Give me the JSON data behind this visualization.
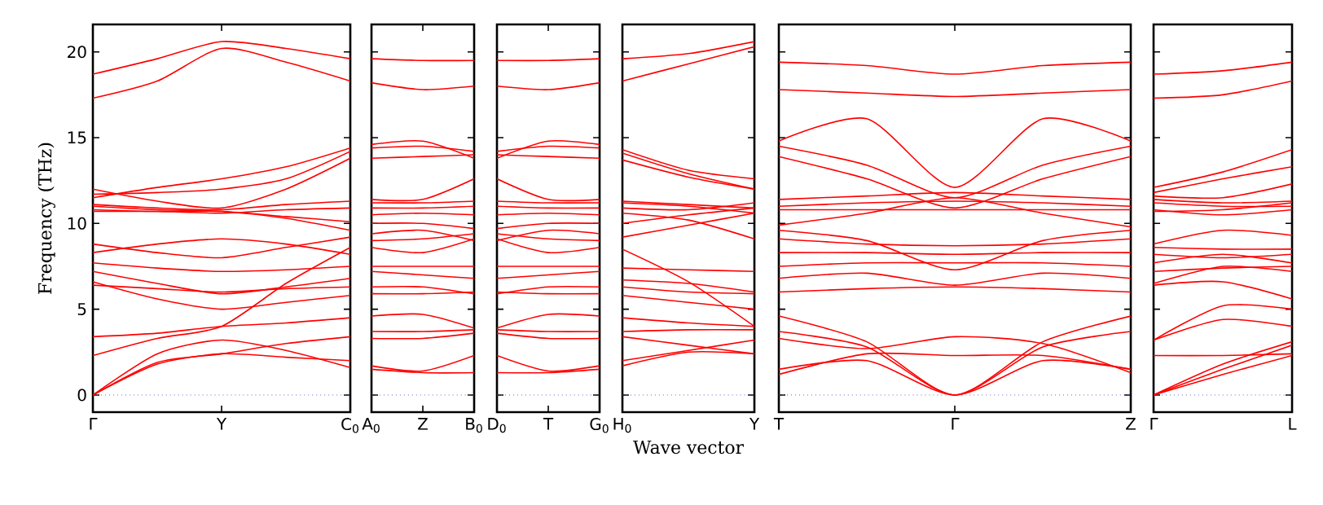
{
  "chart_data": [
    {
      "type": "line",
      "ylabel": "Frequency (THz)",
      "categories": [
        "Γ",
        null,
        "Y",
        null,
        "C$_{0}$"
      ],
      "ylim": [
        -1,
        21.6
      ],
      "yticks": [
        0,
        5,
        10,
        15,
        20
      ],
      "ref_lines": [
        {
          "axis": "y",
          "value": 0,
          "color": "#6666cc",
          "line_style": "dotted"
        }
      ],
      "line_style": "solid",
      "series": [
        {
          "color": "#ff0000",
          "values": [
            18.7,
            19.6,
            20.6,
            20.2,
            19.6
          ]
        },
        {
          "color": "#ff0000",
          "values": [
            17.3,
            18.3,
            20.2,
            19.4,
            18.3
          ]
        },
        {
          "color": "#ff0000",
          "values": [
            11.5,
            12.1,
            12.6,
            13.3,
            14.4
          ]
        },
        {
          "color": "#ff0000",
          "values": [
            11.7,
            11.8,
            12.0,
            12.6,
            14.2
          ]
        },
        {
          "color": "#ff0000",
          "values": [
            12.0,
            11.3,
            10.9,
            12.0,
            13.8
          ]
        },
        {
          "color": "#ff0000",
          "values": [
            11.1,
            10.9,
            10.8,
            11.1,
            11.3
          ]
        },
        {
          "color": "#ff0000",
          "values": [
            10.7,
            10.7,
            10.6,
            10.8,
            10.9
          ]
        },
        {
          "color": "#ff0000",
          "values": [
            11.0,
            10.8,
            10.7,
            10.3,
            9.6
          ]
        },
        {
          "color": "#ff0000",
          "values": [
            10.8,
            10.7,
            10.7,
            10.4,
            10.1
          ]
        },
        {
          "color": "#ff0000",
          "values": [
            8.3,
            8.8,
            9.1,
            8.8,
            8.2
          ]
        },
        {
          "color": "#ff0000",
          "values": [
            8.8,
            8.3,
            8.0,
            8.6,
            9.2
          ]
        },
        {
          "color": "#ff0000",
          "values": [
            7.7,
            7.4,
            7.2,
            7.3,
            7.5
          ]
        },
        {
          "color": "#ff0000",
          "values": [
            7.2,
            6.5,
            5.9,
            6.3,
            6.8
          ]
        },
        {
          "color": "#ff0000",
          "values": [
            6.6,
            5.6,
            5.0,
            5.4,
            5.8
          ]
        },
        {
          "color": "#ff0000",
          "values": [
            6.4,
            6.2,
            6.0,
            6.2,
            6.3
          ]
        },
        {
          "color": "#ff0000",
          "values": [
            3.4,
            3.6,
            4.0,
            4.2,
            4.5
          ]
        },
        {
          "color": "#ff0000",
          "values": [
            2.3,
            3.3,
            4.0,
            6.5,
            8.6
          ]
        },
        {
          "color": "#ff0000",
          "values": [
            0,
            2.4,
            3.2,
            2.6,
            1.6
          ]
        },
        {
          "color": "#ff0000",
          "values": [
            0,
            1.9,
            2.4,
            3.0,
            3.4
          ]
        },
        {
          "color": "#ff0000",
          "values": [
            0,
            1.8,
            2.4,
            2.2,
            2.0
          ]
        }
      ]
    },
    {
      "type": "line",
      "categories": [
        "A$_{0}$",
        "Z",
        "B$_{0}$"
      ],
      "ylim": [
        -1,
        21.6
      ],
      "yticks": [
        0,
        5,
        10,
        15,
        20
      ],
      "tick_labels": "x",
      "ref_lines": [
        {
          "axis": "y",
          "value": 0,
          "color": "#6666cc",
          "line_style": "dotted"
        }
      ],
      "line_style": "solid",
      "series": [
        {
          "color": "#ff0000",
          "values": [
            19.6,
            19.5,
            19.5
          ]
        },
        {
          "color": "#ff0000",
          "values": [
            18.2,
            17.8,
            18.0
          ]
        },
        {
          "color": "#ff0000",
          "values": [
            14.6,
            14.8,
            13.8
          ]
        },
        {
          "color": "#ff0000",
          "values": [
            14.4,
            14.5,
            14.2
          ]
        },
        {
          "color": "#ff0000",
          "values": [
            13.8,
            13.9,
            14.0
          ]
        },
        {
          "color": "#ff0000",
          "values": [
            11.4,
            11.4,
            12.6
          ]
        },
        {
          "color": "#ff0000",
          "values": [
            11.2,
            11.2,
            11.3
          ]
        },
        {
          "color": "#ff0000",
          "values": [
            10.9,
            10.9,
            11.0
          ]
        },
        {
          "color": "#ff0000",
          "values": [
            10.5,
            10.6,
            10.5
          ]
        },
        {
          "color": "#ff0000",
          "values": [
            10.0,
            10.0,
            9.7
          ]
        },
        {
          "color": "#ff0000",
          "values": [
            9.4,
            9.6,
            9.0
          ]
        },
        {
          "color": "#ff0000",
          "values": [
            9.0,
            9.1,
            9.4
          ]
        },
        {
          "color": "#ff0000",
          "values": [
            8.6,
            8.3,
            9.1
          ]
        },
        {
          "color": "#ff0000",
          "values": [
            7.5,
            7.5,
            7.5
          ]
        },
        {
          "color": "#ff0000",
          "values": [
            7.2,
            7.0,
            6.8
          ]
        },
        {
          "color": "#ff0000",
          "values": [
            6.3,
            6.3,
            5.9
          ]
        },
        {
          "color": "#ff0000",
          "values": [
            5.9,
            5.9,
            6.0
          ]
        },
        {
          "color": "#ff0000",
          "values": [
            4.6,
            4.7,
            3.9
          ]
        },
        {
          "color": "#ff0000",
          "values": [
            3.7,
            3.7,
            3.8
          ]
        },
        {
          "color": "#ff0000",
          "values": [
            3.3,
            3.3,
            3.6
          ]
        },
        {
          "color": "#ff0000",
          "values": [
            1.7,
            1.4,
            2.3
          ]
        },
        {
          "color": "#ff0000",
          "values": [
            1.5,
            1.3,
            1.3
          ]
        }
      ]
    },
    {
      "type": "line",
      "categories": [
        "D$_{0}$",
        "T",
        "G$_{0}$"
      ],
      "ylim": [
        -1,
        21.6
      ],
      "yticks": [
        0,
        5,
        10,
        15,
        20
      ],
      "tick_labels": "x",
      "ref_lines": [
        {
          "axis": "y",
          "value": 0,
          "color": "#6666cc",
          "line_style": "dotted"
        }
      ],
      "line_style": "solid",
      "series": [
        {
          "color": "#ff0000",
          "values": [
            19.5,
            19.5,
            19.6
          ]
        },
        {
          "color": "#ff0000",
          "values": [
            18.0,
            17.8,
            18.2
          ]
        },
        {
          "color": "#ff0000",
          "values": [
            13.8,
            14.8,
            14.6
          ]
        },
        {
          "color": "#ff0000",
          "values": [
            14.2,
            14.5,
            14.4
          ]
        },
        {
          "color": "#ff0000",
          "values": [
            14.0,
            13.9,
            13.8
          ]
        },
        {
          "color": "#ff0000",
          "values": [
            12.6,
            11.4,
            11.4
          ]
        },
        {
          "color": "#ff0000",
          "values": [
            11.3,
            11.2,
            11.2
          ]
        },
        {
          "color": "#ff0000",
          "values": [
            11.0,
            10.9,
            10.9
          ]
        },
        {
          "color": "#ff0000",
          "values": [
            10.5,
            10.6,
            10.5
          ]
        },
        {
          "color": "#ff0000",
          "values": [
            9.7,
            10.0,
            10.0
          ]
        },
        {
          "color": "#ff0000",
          "values": [
            9.0,
            9.6,
            9.4
          ]
        },
        {
          "color": "#ff0000",
          "values": [
            9.4,
            9.1,
            9.0
          ]
        },
        {
          "color": "#ff0000",
          "values": [
            9.1,
            8.3,
            8.6
          ]
        },
        {
          "color": "#ff0000",
          "values": [
            7.5,
            7.5,
            7.5
          ]
        },
        {
          "color": "#ff0000",
          "values": [
            6.8,
            7.0,
            7.2
          ]
        },
        {
          "color": "#ff0000",
          "values": [
            5.9,
            6.3,
            6.3
          ]
        },
        {
          "color": "#ff0000",
          "values": [
            6.0,
            5.9,
            5.9
          ]
        },
        {
          "color": "#ff0000",
          "values": [
            3.9,
            4.7,
            4.6
          ]
        },
        {
          "color": "#ff0000",
          "values": [
            3.8,
            3.7,
            3.7
          ]
        },
        {
          "color": "#ff0000",
          "values": [
            3.6,
            3.3,
            3.3
          ]
        },
        {
          "color": "#ff0000",
          "values": [
            2.3,
            1.4,
            1.7
          ]
        },
        {
          "color": "#ff0000",
          "values": [
            1.3,
            1.3,
            1.5
          ]
        }
      ]
    },
    {
      "type": "line",
      "xlabel": "Wave vector",
      "categories": [
        "H$_{0}$",
        null,
        "Y"
      ],
      "ylim": [
        -1,
        21.6
      ],
      "yticks": [
        0,
        5,
        10,
        15,
        20
      ],
      "tick_labels": "x",
      "ref_lines": [
        {
          "axis": "y",
          "value": 0,
          "color": "#6666cc",
          "line_style": "dotted"
        }
      ],
      "line_style": "solid",
      "series": [
        {
          "color": "#ff0000",
          "values": [
            19.6,
            19.9,
            20.6
          ]
        },
        {
          "color": "#ff0000",
          "values": [
            18.3,
            19.3,
            20.3
          ]
        },
        {
          "color": "#ff0000",
          "values": [
            14.3,
            13.1,
            12.6
          ]
        },
        {
          "color": "#ff0000",
          "values": [
            14.1,
            12.9,
            12.0
          ]
        },
        {
          "color": "#ff0000",
          "values": [
            13.7,
            12.7,
            12.0
          ]
        },
        {
          "color": "#ff0000",
          "values": [
            11.3,
            11.1,
            10.9
          ]
        },
        {
          "color": "#ff0000",
          "values": [
            11.2,
            11.0,
            10.6
          ]
        },
        {
          "color": "#ff0000",
          "values": [
            10.9,
            10.8,
            11.2
          ]
        },
        {
          "color": "#ff0000",
          "values": [
            10.6,
            10.2,
            9.1
          ]
        },
        {
          "color": "#ff0000",
          "values": [
            10.0,
            10.5,
            10.9
          ]
        },
        {
          "color": "#ff0000",
          "values": [
            9.2,
            9.9,
            10.6
          ]
        },
        {
          "color": "#ff0000",
          "values": [
            8.5,
            6.6,
            4.0
          ]
        },
        {
          "color": "#ff0000",
          "values": [
            7.4,
            7.3,
            7.2
          ]
        },
        {
          "color": "#ff0000",
          "values": [
            6.7,
            6.5,
            6.0
          ]
        },
        {
          "color": "#ff0000",
          "values": [
            6.3,
            6.0,
            5.9
          ]
        },
        {
          "color": "#ff0000",
          "values": [
            5.8,
            5.4,
            5.0
          ]
        },
        {
          "color": "#ff0000",
          "values": [
            4.5,
            4.2,
            4.0
          ]
        },
        {
          "color": "#ff0000",
          "values": [
            3.7,
            3.8,
            3.8
          ]
        },
        {
          "color": "#ff0000",
          "values": [
            3.4,
            2.9,
            2.4
          ]
        },
        {
          "color": "#ff0000",
          "values": [
            2.0,
            2.6,
            3.2
          ]
        },
        {
          "color": "#ff0000",
          "values": [
            1.7,
            2.5,
            2.4
          ]
        }
      ]
    },
    {
      "type": "line",
      "categories": [
        "T",
        null,
        "Γ",
        null,
        "Z"
      ],
      "ylim": [
        -1,
        21.6
      ],
      "yticks": [
        0,
        5,
        10,
        15,
        20
      ],
      "tick_labels": "x",
      "ref_lines": [
        {
          "axis": "y",
          "value": 0,
          "color": "#6666cc",
          "line_style": "dotted"
        }
      ],
      "line_style": "solid",
      "series": [
        {
          "color": "#ff0000",
          "values": [
            19.4,
            19.2,
            18.7,
            19.2,
            19.4
          ]
        },
        {
          "color": "#ff0000",
          "values": [
            17.8,
            17.6,
            17.4,
            17.6,
            17.8
          ]
        },
        {
          "color": "#ff0000",
          "values": [
            14.8,
            16.1,
            12.1,
            16.1,
            14.8
          ]
        },
        {
          "color": "#ff0000",
          "values": [
            14.5,
            13.4,
            11.5,
            13.4,
            14.5
          ]
        },
        {
          "color": "#ff0000",
          "values": [
            13.9,
            12.6,
            10.9,
            12.6,
            13.9
          ]
        },
        {
          "color": "#ff0000",
          "values": [
            11.4,
            11.6,
            11.8,
            11.6,
            11.4
          ]
        },
        {
          "color": "#ff0000",
          "values": [
            11.0,
            11.2,
            11.3,
            11.2,
            11.0
          ]
        },
        {
          "color": "#ff0000",
          "values": [
            10.8,
            10.8,
            10.8,
            10.8,
            10.8
          ]
        },
        {
          "color": "#ff0000",
          "values": [
            9.9,
            10.6,
            11.5,
            10.6,
            9.8
          ]
        },
        {
          "color": "#ff0000",
          "values": [
            9.6,
            9.0,
            7.3,
            9.0,
            9.6
          ]
        },
        {
          "color": "#ff0000",
          "values": [
            9.1,
            8.8,
            8.7,
            8.8,
            9.1
          ]
        },
        {
          "color": "#ff0000",
          "values": [
            8.3,
            8.3,
            8.2,
            8.3,
            8.3
          ]
        },
        {
          "color": "#ff0000",
          "values": [
            7.5,
            7.7,
            7.7,
            7.7,
            7.5
          ]
        },
        {
          "color": "#ff0000",
          "values": [
            6.8,
            7.1,
            6.4,
            7.1,
            6.8
          ]
        },
        {
          "color": "#ff0000",
          "values": [
            6.0,
            6.2,
            6.3,
            6.2,
            6.0
          ]
        },
        {
          "color": "#ff0000",
          "values": [
            4.6,
            3.1,
            0,
            3.1,
            4.6
          ]
        },
        {
          "color": "#ff0000",
          "values": [
            3.7,
            2.8,
            0,
            2.8,
            3.7
          ]
        },
        {
          "color": "#ff0000",
          "values": [
            1.5,
            2.0,
            0,
            2.0,
            1.5
          ]
        },
        {
          "color": "#ff0000",
          "values": [
            3.3,
            2.7,
            3.4,
            3.0,
            1.3
          ]
        },
        {
          "color": "#ff0000",
          "values": [
            1.2,
            2.4,
            2.3,
            2.3,
            1.5
          ]
        }
      ]
    },
    {
      "type": "line",
      "categories": [
        "Γ",
        null,
        "L"
      ],
      "ylim": [
        -1,
        21.6
      ],
      "yticks": [
        0,
        5,
        10,
        15,
        20
      ],
      "tick_labels": "x",
      "ref_lines": [
        {
          "axis": "y",
          "value": 0,
          "color": "#6666cc",
          "line_style": "dotted"
        }
      ],
      "line_style": "solid",
      "series": [
        {
          "color": "#ff0000",
          "values": [
            18.7,
            18.9,
            19.4
          ]
        },
        {
          "color": "#ff0000",
          "values": [
            17.3,
            17.5,
            18.3
          ]
        },
        {
          "color": "#ff0000",
          "values": [
            12.1,
            13.0,
            14.3
          ]
        },
        {
          "color": "#ff0000",
          "values": [
            11.8,
            12.6,
            13.3
          ]
        },
        {
          "color": "#ff0000",
          "values": [
            11.6,
            11.5,
            12.3
          ]
        },
        {
          "color": "#ff0000",
          "values": [
            11.4,
            11.2,
            11.3
          ]
        },
        {
          "color": "#ff0000",
          "values": [
            11.2,
            11.0,
            11.0
          ]
        },
        {
          "color": "#ff0000",
          "values": [
            10.8,
            10.5,
            10.8
          ]
        },
        {
          "color": "#ff0000",
          "values": [
            10.7,
            10.8,
            11.2
          ]
        },
        {
          "color": "#ff0000",
          "values": [
            8.8,
            9.6,
            9.3
          ]
        },
        {
          "color": "#ff0000",
          "values": [
            8.6,
            8.5,
            8.5
          ]
        },
        {
          "color": "#ff0000",
          "values": [
            8.2,
            8.0,
            8.2
          ]
        },
        {
          "color": "#ff0000",
          "values": [
            7.7,
            8.2,
            7.7
          ]
        },
        {
          "color": "#ff0000",
          "values": [
            7.2,
            7.4,
            7.5
          ]
        },
        {
          "color": "#ff0000",
          "values": [
            6.5,
            7.5,
            7.2
          ]
        },
        {
          "color": "#ff0000",
          "values": [
            6.4,
            6.6,
            5.6
          ]
        },
        {
          "color": "#ff0000",
          "values": [
            3.2,
            5.2,
            5.0
          ]
        },
        {
          "color": "#ff0000",
          "values": [
            3.2,
            4.4,
            4.0
          ]
        },
        {
          "color": "#ff0000",
          "values": [
            2.3,
            2.3,
            2.4
          ]
        },
        {
          "color": "#ff0000",
          "values": [
            0,
            1.8,
            3.1
          ]
        },
        {
          "color": "#ff0000",
          "values": [
            0,
            1.5,
            2.9
          ]
        },
        {
          "color": "#ff0000",
          "values": [
            0,
            1.2,
            2.3
          ]
        }
      ]
    }
  ]
}
